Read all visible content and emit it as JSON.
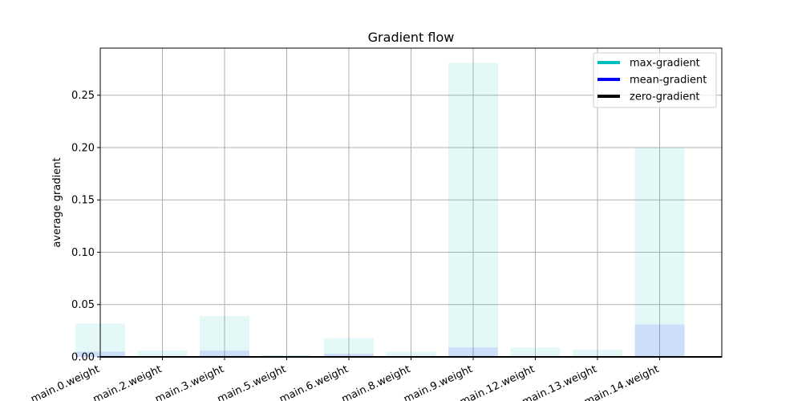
{
  "chart_data": {
    "type": "bar",
    "title": "Gradient flow",
    "xlabel": "",
    "ylabel": "average gradient",
    "ylim": [
      0,
      0.295
    ],
    "yticks": [
      0.0,
      0.05,
      0.1,
      0.15,
      0.2,
      0.25
    ],
    "ytick_labels": [
      "0.00",
      "0.05",
      "0.10",
      "0.15",
      "0.20",
      "0.25"
    ],
    "grid": true,
    "legend_position": "top-right",
    "categories": [
      "main.0.weight",
      "main.2.weight",
      "main.3.weight",
      "main.5.weight",
      "main.6.weight",
      "main.8.weight",
      "main.9.weight",
      "main.12.weight",
      "main.13.weight",
      "main.14.weight"
    ],
    "series": [
      {
        "name": "max-gradient",
        "color": "#00bfbf",
        "values": [
          0.032,
          0.006,
          0.039,
          0.002,
          0.018,
          0.005,
          0.281,
          0.009,
          0.007,
          0.2
        ]
      },
      {
        "name": "mean-gradient",
        "color": "#0000ff",
        "values": [
          0.005,
          0.001,
          0.006,
          0.001,
          0.003,
          0.001,
          0.009,
          0.001,
          0.001,
          0.031
        ]
      },
      {
        "name": "zero-gradient",
        "color": "#000000",
        "values": [
          0,
          0,
          0,
          0,
          0,
          0,
          0,
          0,
          0,
          0
        ]
      }
    ]
  }
}
